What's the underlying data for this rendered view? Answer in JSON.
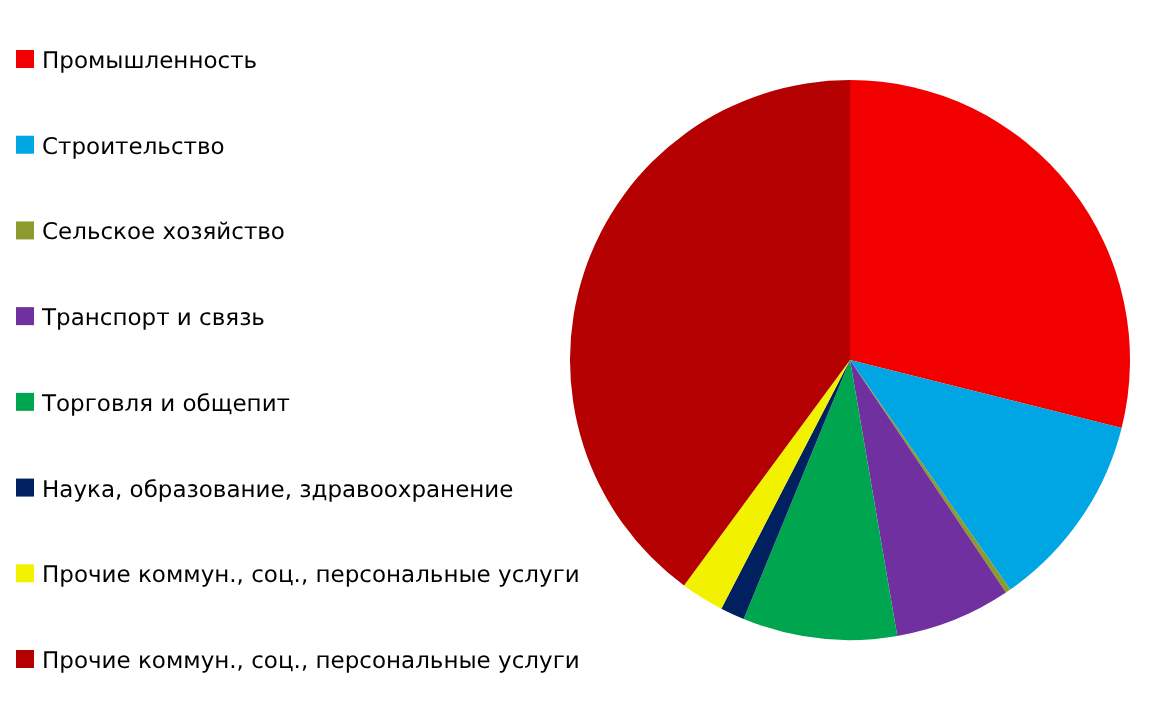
{
  "chart_data": {
    "type": "pie",
    "categories": [
      "Промышленность",
      "Строительство",
      "Сельское хозяйство",
      "Транспорт и связь",
      "Торговля и общепит",
      "Наука, образование, здравоохранение",
      "Прочие коммун., соц., персональные услуги",
      "Прочие коммун., соц., персональные услуги"
    ],
    "values": [
      28.9,
      11.4,
      0.3,
      6.7,
      8.9,
      1.4,
      2.5,
      39.9
    ],
    "colors": [
      "#f20000",
      "#00a5e3",
      "#8c9a2e",
      "#7030a0",
      "#00a550",
      "#002060",
      "#f2f200",
      "#b40000"
    ],
    "legend": "left"
  }
}
